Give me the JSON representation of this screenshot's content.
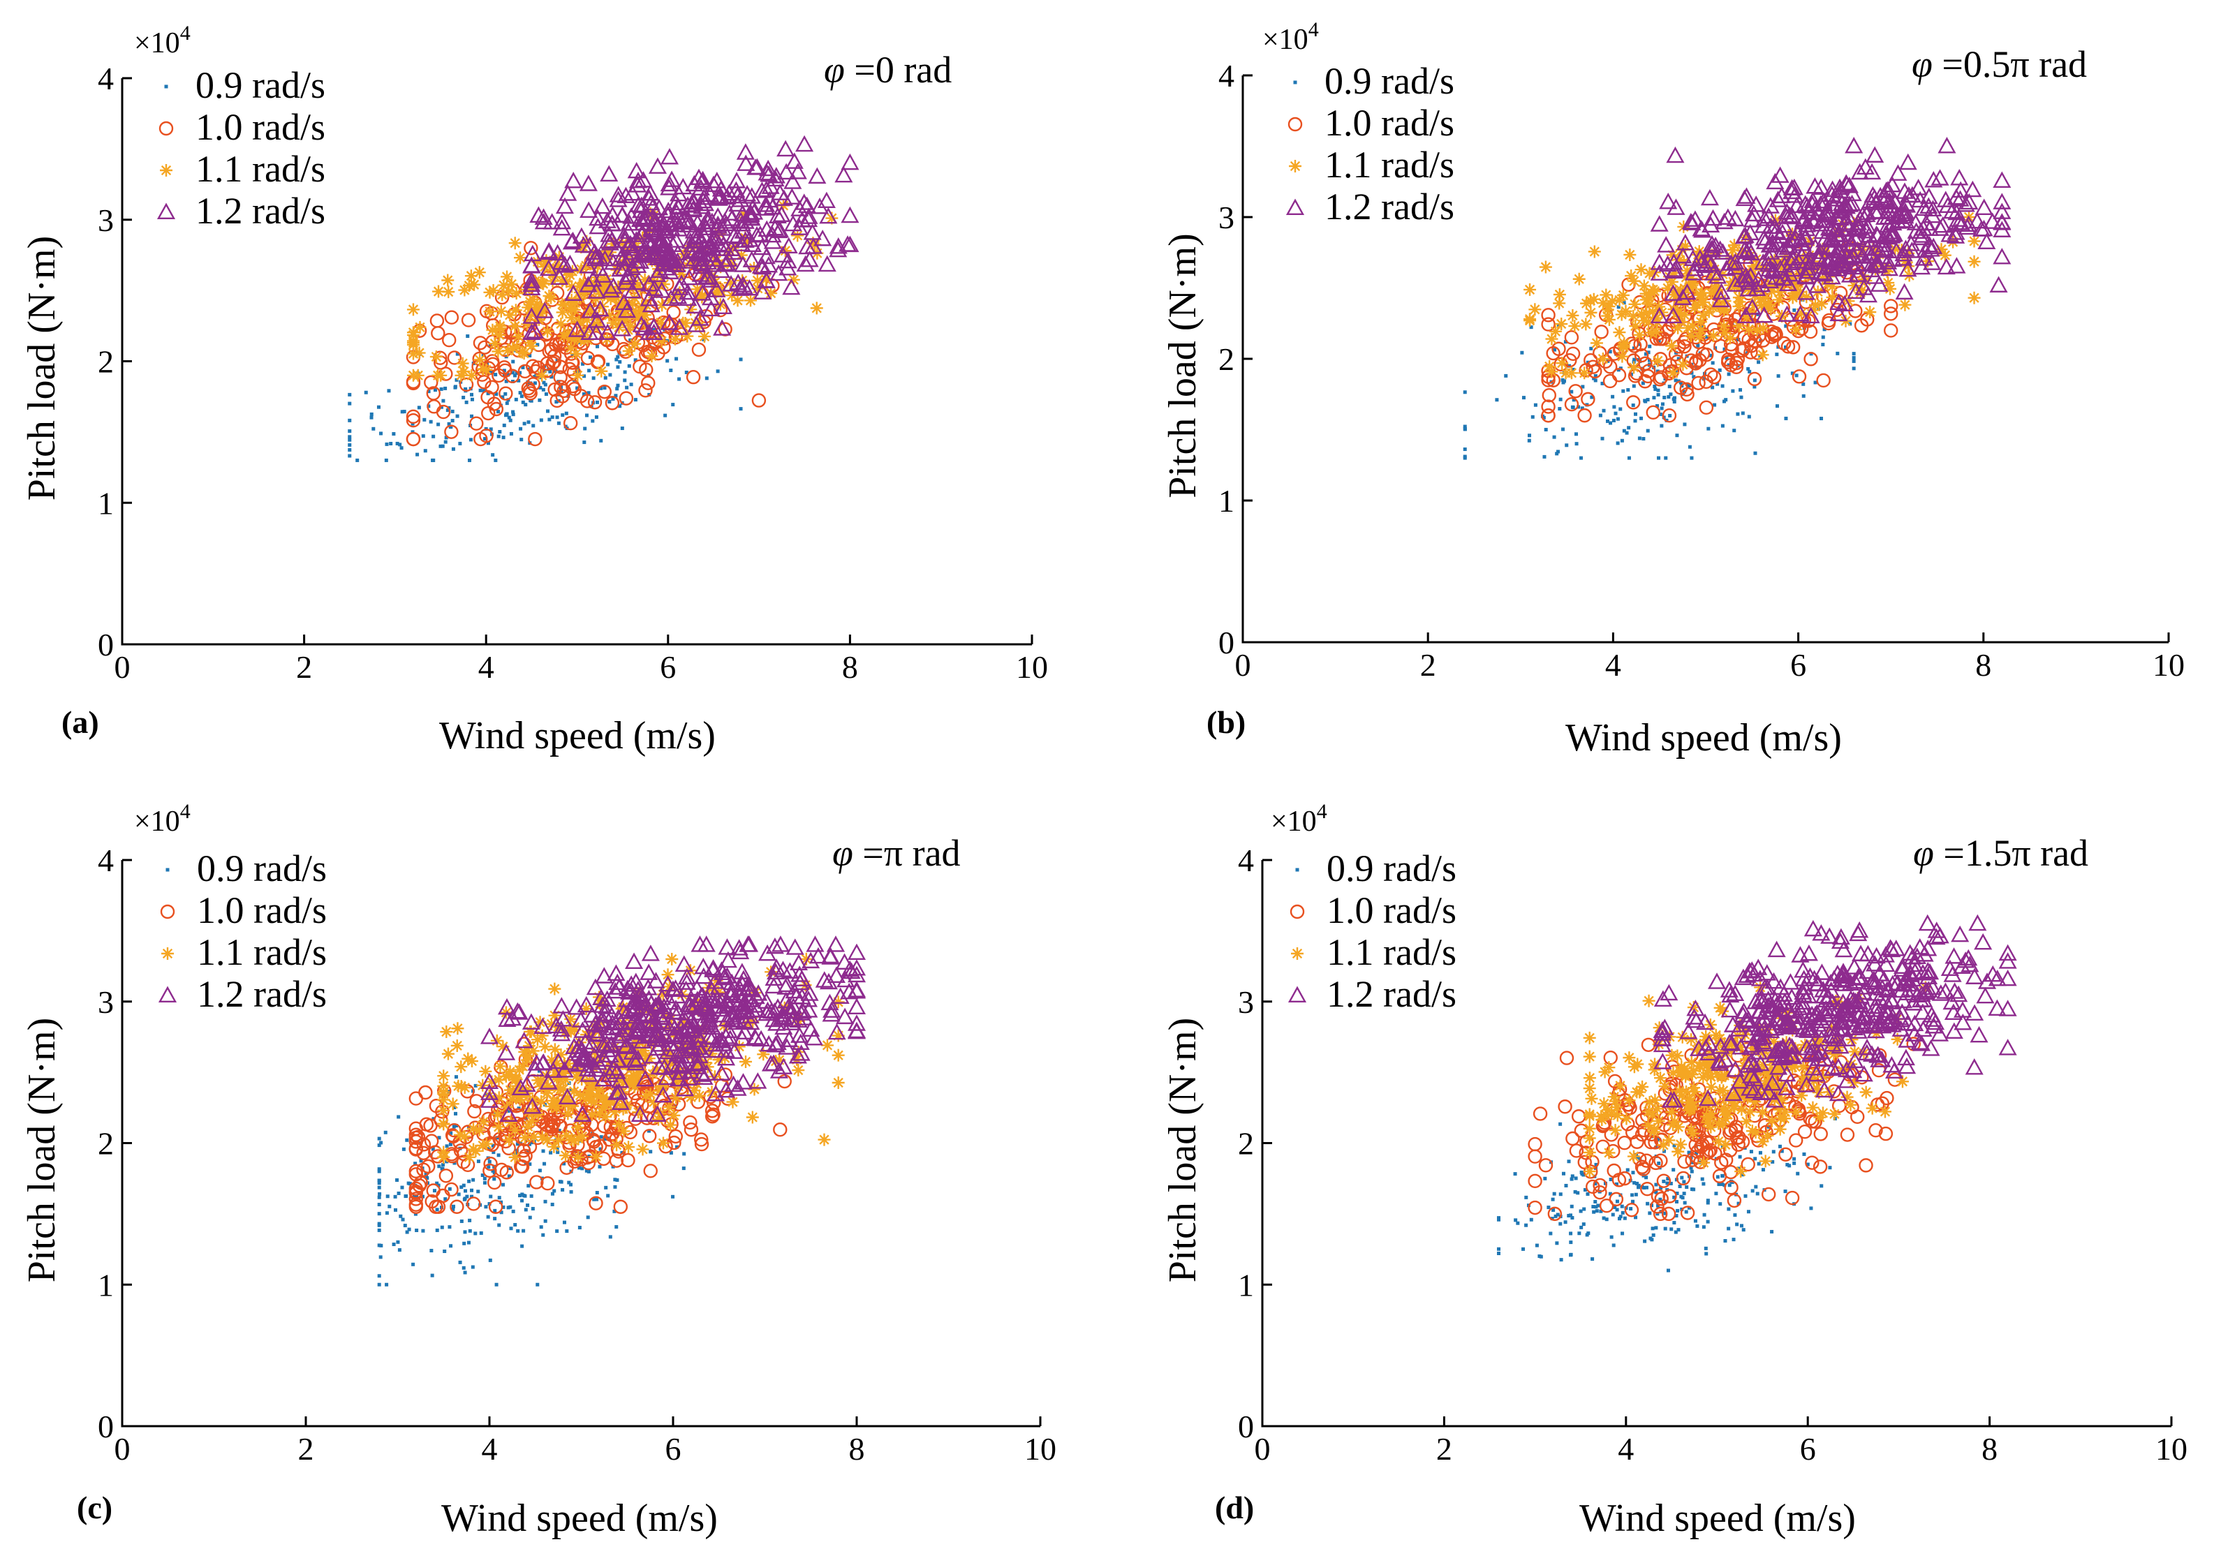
{
  "figure": {
    "xlabel": "Wind speed (m/s)",
    "ylabel": "Pitch load (N·m)",
    "exponent_base": "×10",
    "exponent_power": "4"
  },
  "chart_data": [
    {
      "panel": "(a)",
      "type": "scatter",
      "title": "",
      "annotation_symbol": "φ",
      "annotation_value": " =0 rad",
      "xlabel": "Wind speed (m/s)",
      "ylabel": "Pitch load (N·m)",
      "xlim": [
        0,
        10
      ],
      "ylim": [
        0,
        4
      ],
      "xticks": [
        "0",
        "2",
        "4",
        "6",
        "8",
        "10"
      ],
      "yticks": [
        "0",
        "1",
        "2",
        "3",
        "4"
      ],
      "y_multiplier": "×10^4",
      "legend_position": "top-left",
      "series": [
        {
          "name": "0.9 rad/s",
          "marker": "dot",
          "color": "#1f77b4",
          "x_range": [
            2.5,
            6.8
          ],
          "y_center": [
            1.3,
            2.4
          ],
          "x_center": 4.4,
          "y_mean": 1.75,
          "count": 260
        },
        {
          "name": "1.0 rad/s",
          "marker": "circle",
          "color": "#e8501f",
          "x_range": [
            3.2,
            7.4
          ],
          "y_center": [
            1.45,
            2.8
          ],
          "x_center": 4.9,
          "y_mean": 2.1,
          "count": 220
        },
        {
          "name": "1.1 rad/s",
          "marker": "star",
          "color": "#f5a623",
          "x_range": [
            3.2,
            7.8
          ],
          "y_center": [
            1.9,
            3.1
          ],
          "x_center": 5.2,
          "y_mean": 2.45,
          "count": 300
        },
        {
          "name": "1.2 rad/s",
          "marker": "triangle",
          "color": "#8e2b8e",
          "x_range": [
            4.5,
            8.0
          ],
          "y_center": [
            2.2,
            3.6
          ],
          "x_center": 6.2,
          "y_mean": 2.85,
          "count": 420
        }
      ]
    },
    {
      "panel": "(b)",
      "type": "scatter",
      "title": "",
      "annotation_symbol": "φ",
      "annotation_value": " =0.5π rad",
      "xlabel": "Wind speed (m/s)",
      "ylabel": "Pitch load (N·m)",
      "xlim": [
        0,
        10
      ],
      "ylim": [
        0,
        4
      ],
      "xticks": [
        "0",
        "2",
        "4",
        "6",
        "8",
        "10"
      ],
      "yticks": [
        "0",
        "1",
        "2",
        "3",
        "4"
      ],
      "y_multiplier": "×10^4",
      "legend_position": "top-left",
      "series": [
        {
          "name": "0.9 rad/s",
          "marker": "dot",
          "color": "#1f77b4",
          "x_range": [
            2.4,
            6.6
          ],
          "y_center": [
            1.3,
            2.6
          ],
          "x_center": 4.5,
          "y_mean": 1.8,
          "count": 240
        },
        {
          "name": "1.0 rad/s",
          "marker": "circle",
          "color": "#e8501f",
          "x_range": [
            3.3,
            7.0
          ],
          "y_center": [
            1.6,
            2.8
          ],
          "x_center": 4.9,
          "y_mean": 2.15,
          "count": 220
        },
        {
          "name": "1.1 rad/s",
          "marker": "star",
          "color": "#f5a623",
          "x_range": [
            3.1,
            7.9
          ],
          "y_center": [
            1.9,
            3.0
          ],
          "x_center": 5.3,
          "y_mean": 2.5,
          "count": 300
        },
        {
          "name": "1.2 rad/s",
          "marker": "triangle",
          "color": "#8e2b8e",
          "x_range": [
            4.5,
            8.2
          ],
          "y_center": [
            2.3,
            3.5
          ],
          "x_center": 6.3,
          "y_mean": 2.85,
          "count": 420
        }
      ]
    },
    {
      "panel": "(c)",
      "type": "scatter",
      "title": "",
      "annotation_symbol": "φ",
      "annotation_value": " =π rad",
      "xlabel": "Wind speed (m/s)",
      "ylabel": "Pitch load (N·m)",
      "xlim": [
        0,
        10
      ],
      "ylim": [
        0,
        4
      ],
      "xticks": [
        "0",
        "2",
        "4",
        "6",
        "8",
        "10"
      ],
      "yticks": [
        "0",
        "1",
        "2",
        "3",
        "4"
      ],
      "y_multiplier": "×10^4",
      "legend_position": "top-left",
      "series": [
        {
          "name": "0.9 rad/s",
          "marker": "dot",
          "color": "#1f77b4",
          "x_range": [
            2.8,
            6.5
          ],
          "y_center": [
            1.0,
            2.7
          ],
          "x_center": 4.0,
          "y_mean": 1.75,
          "count": 280
        },
        {
          "name": "1.0 rad/s",
          "marker": "circle",
          "color": "#e8501f",
          "x_range": [
            3.2,
            7.8
          ],
          "y_center": [
            1.55,
            2.7
          ],
          "x_center": 4.8,
          "y_mean": 2.1,
          "count": 260
        },
        {
          "name": "1.1 rad/s",
          "marker": "star",
          "color": "#f5a623",
          "x_range": [
            3.5,
            7.8
          ],
          "y_center": [
            1.9,
            3.3
          ],
          "x_center": 5.2,
          "y_mean": 2.5,
          "count": 380
        },
        {
          "name": "1.2 rad/s",
          "marker": "triangle",
          "color": "#8e2b8e",
          "x_range": [
            4.0,
            8.0
          ],
          "y_center": [
            2.2,
            3.4
          ],
          "x_center": 6.2,
          "y_mean": 2.85,
          "count": 460
        }
      ]
    },
    {
      "panel": "(d)",
      "type": "scatter",
      "title": "",
      "annotation_symbol": "φ",
      "annotation_value": " =1.5π rad",
      "xlabel": "Wind speed (m/s)",
      "ylabel": "Pitch load (N·m)",
      "xlim": [
        0,
        10
      ],
      "ylim": [
        0,
        4
      ],
      "xticks": [
        "0",
        "2",
        "4",
        "6",
        "8",
        "10"
      ],
      "yticks": [
        "0",
        "1",
        "2",
        "3",
        "4"
      ],
      "y_multiplier": "×10^4",
      "legend_position": "top-left",
      "series": [
        {
          "name": "0.9 rad/s",
          "marker": "dot",
          "color": "#1f77b4",
          "x_range": [
            2.6,
            6.3
          ],
          "y_center": [
            1.1,
            2.2
          ],
          "x_center": 4.3,
          "y_mean": 1.65,
          "count": 260
        },
        {
          "name": "1.0 rad/s",
          "marker": "circle",
          "color": "#e8501f",
          "x_range": [
            3.0,
            7.4
          ],
          "y_center": [
            1.5,
            2.8
          ],
          "x_center": 4.8,
          "y_mean": 2.1,
          "count": 240
        },
        {
          "name": "1.1 rad/s",
          "marker": "star",
          "color": "#f5a623",
          "x_range": [
            3.6,
            7.4
          ],
          "y_center": [
            1.8,
            3.1
          ],
          "x_center": 5.2,
          "y_mean": 2.45,
          "count": 300
        },
        {
          "name": "1.2 rad/s",
          "marker": "triangle",
          "color": "#8e2b8e",
          "x_range": [
            4.4,
            8.2
          ],
          "y_center": [
            2.3,
            3.55
          ],
          "x_center": 6.3,
          "y_mean": 2.9,
          "count": 420
        }
      ]
    }
  ]
}
